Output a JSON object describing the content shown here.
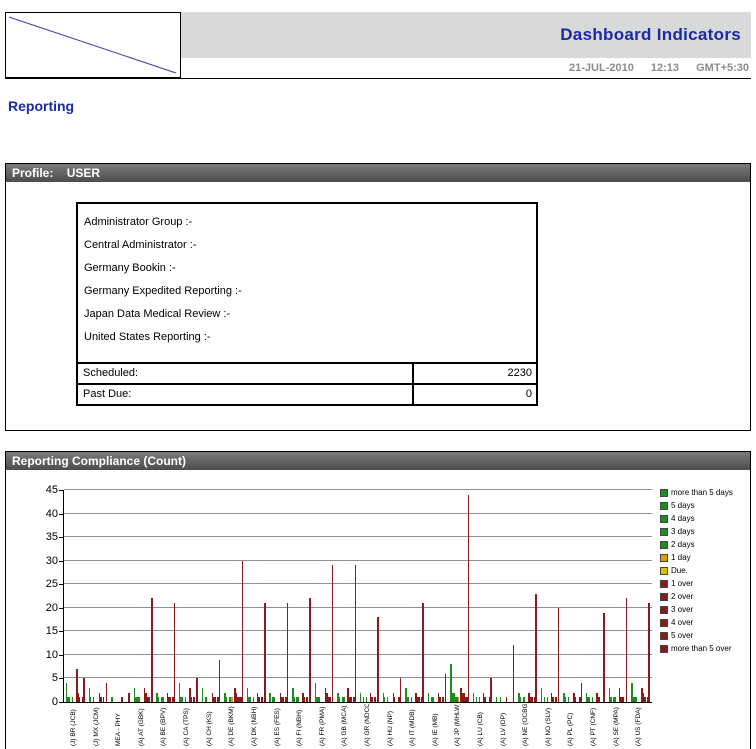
{
  "header": {
    "title": "Dashboard Indicators",
    "date": "21-JUL-2010",
    "time": "12:13",
    "tz": "GMT+5:30"
  },
  "page_title": "Reporting",
  "profile": {
    "header_label": "Profile:",
    "header_value": "USER",
    "lines": [
      "Administrator Group :-",
      "Central Administrator :-",
      "Germany Bookin :-",
      "Germany Expedited Reporting :-",
      "Japan Data Medical Review :-",
      "United States Reporting :-"
    ],
    "stats": [
      {
        "label": "Scheduled:",
        "value": "2230"
      },
      {
        "label": "Past Due:",
        "value": "0"
      }
    ]
  },
  "compliance": {
    "header_label": "Reporting Compliance (Count)"
  },
  "chart_data": {
    "type": "bar",
    "title": "Reporting Compliance (Count)",
    "ylabel": "",
    "xlabel": "",
    "ylim": [
      0,
      45
    ],
    "yticks": [
      0,
      5,
      10,
      15,
      20,
      25,
      30,
      35,
      40,
      45
    ],
    "grid": true,
    "legend_position": "right",
    "categories": [
      "(J) BR (JCB)",
      "(J) MX (JCM)",
      "MEA - PHY",
      "(A) AT (GBK)",
      "(A) BE (BPV)",
      "(A) CA (TPS)",
      "(A) CH (KS)",
      "(A) DE (BKM)",
      "(A) DK (NBH)",
      "(A) ES (FES)",
      "(A) FI (NBH)",
      "(A) FR (PMA)",
      "(A) GB (MCA)",
      "(A) GR (NDCO)",
      "(A) HU (NP)",
      "(A) IT (MDB)",
      "(A) IE (MB)",
      "(A) JP (MHLW)",
      "(A) LU (CB)",
      "(A) LV (DP)",
      "(A) NE (OCBG)",
      "(A) NO (SLV)",
      "(A) PL (PC)",
      "(A) PT (CNF)",
      "(A) SE (MPA)",
      "(A) US (FDA)"
    ],
    "series": [
      {
        "name": "more than 5 days",
        "color": "#1E8C1E",
        "values": [
          4,
          3,
          1,
          3,
          2,
          4,
          3,
          2,
          3,
          2,
          3,
          4,
          2,
          2,
          2,
          3,
          2,
          8,
          2,
          1,
          2,
          3,
          2,
          2,
          3,
          4
        ]
      },
      {
        "name": "5 days",
        "color": "#1E8C1E",
        "values": [
          1,
          1,
          0,
          1,
          1,
          1,
          0,
          1,
          1,
          0,
          1,
          1,
          1,
          0,
          1,
          1,
          0,
          2,
          0,
          0,
          1,
          0,
          1,
          1,
          1,
          1
        ]
      },
      {
        "name": "4 days",
        "color": "#1E8C1E",
        "values": [
          1,
          0,
          0,
          1,
          0,
          1,
          1,
          0,
          1,
          1,
          0,
          1,
          0,
          1,
          0,
          1,
          1,
          2,
          1,
          0,
          0,
          1,
          0,
          1,
          0,
          1
        ]
      },
      {
        "name": "3 days",
        "color": "#1E8C1E",
        "values": [
          0,
          1,
          0,
          1,
          1,
          0,
          1,
          1,
          0,
          1,
          1,
          1,
          1,
          0,
          1,
          0,
          1,
          1,
          0,
          1,
          1,
          0,
          1,
          0,
          1,
          1
        ]
      },
      {
        "name": "2 days",
        "color": "#1E8C1E",
        "values": [
          1,
          0,
          0,
          0,
          1,
          1,
          0,
          1,
          1,
          0,
          1,
          0,
          1,
          1,
          0,
          1,
          0,
          1,
          1,
          0,
          1,
          1,
          0,
          1,
          1,
          0
        ]
      },
      {
        "name": "1 day",
        "color": "#E09C00",
        "values": [
          0,
          0,
          0,
          0,
          0,
          0,
          0,
          1,
          0,
          0,
          0,
          0,
          0,
          0,
          0,
          0,
          0,
          1,
          0,
          0,
          0,
          0,
          0,
          0,
          0,
          0
        ]
      },
      {
        "name": "Due.",
        "color": "#E0BE00",
        "values": [
          0,
          0,
          0,
          0,
          0,
          0,
          0,
          0,
          0,
          0,
          0,
          0,
          0,
          0,
          0,
          0,
          0,
          0,
          0,
          0,
          0,
          0,
          0,
          0,
          0,
          0
        ]
      },
      {
        "name": "1 over",
        "color": "#8B1A1A",
        "values": [
          7,
          2,
          1,
          3,
          2,
          3,
          2,
          3,
          2,
          2,
          2,
          3,
          3,
          2,
          2,
          2,
          2,
          3,
          2,
          1,
          2,
          2,
          2,
          2,
          3,
          3
        ]
      },
      {
        "name": "2 over",
        "color": "#8B1A1A",
        "values": [
          2,
          1,
          0,
          2,
          1,
          1,
          1,
          2,
          1,
          1,
          1,
          2,
          1,
          1,
          1,
          1,
          1,
          2,
          1,
          0,
          1,
          1,
          1,
          1,
          1,
          2
        ]
      },
      {
        "name": "3 over",
        "color": "#8B1A1A",
        "values": [
          1,
          0,
          0,
          1,
          1,
          0,
          1,
          1,
          0,
          1,
          0,
          1,
          1,
          0,
          0,
          1,
          0,
          2,
          0,
          0,
          1,
          0,
          0,
          1,
          1,
          1
        ]
      },
      {
        "name": "4 over",
        "color": "#8B1A1A",
        "values": [
          0,
          1,
          0,
          1,
          0,
          1,
          0,
          1,
          1,
          0,
          1,
          1,
          0,
          1,
          0,
          0,
          1,
          1,
          0,
          0,
          0,
          1,
          0,
          0,
          1,
          0
        ]
      },
      {
        "name": "5 over",
        "color": "#8B1A1A",
        "values": [
          1,
          0,
          0,
          0,
          1,
          0,
          1,
          1,
          0,
          1,
          0,
          0,
          1,
          0,
          1,
          1,
          0,
          1,
          1,
          0,
          1,
          0,
          1,
          0,
          0,
          1
        ]
      },
      {
        "name": "more than 5 over",
        "color": "#8B1A1A",
        "values": [
          5,
          4,
          2,
          22,
          21,
          5,
          9,
          30,
          21,
          21,
          22,
          29,
          29,
          18,
          5,
          21,
          6,
          44,
          5,
          12,
          23,
          20,
          4,
          19,
          22,
          21
        ]
      }
    ]
  },
  "colors": {
    "accent_blue": "#1B2AA6",
    "band_gray": "#d9d9d9",
    "header_bar_gray": "#5a5a5a",
    "grid_gray": "#8f8f8f",
    "green": "#1E8C1E",
    "orange": "#E09C00",
    "yellow": "#E0BE00",
    "dark_red": "#8B1A1A"
  }
}
